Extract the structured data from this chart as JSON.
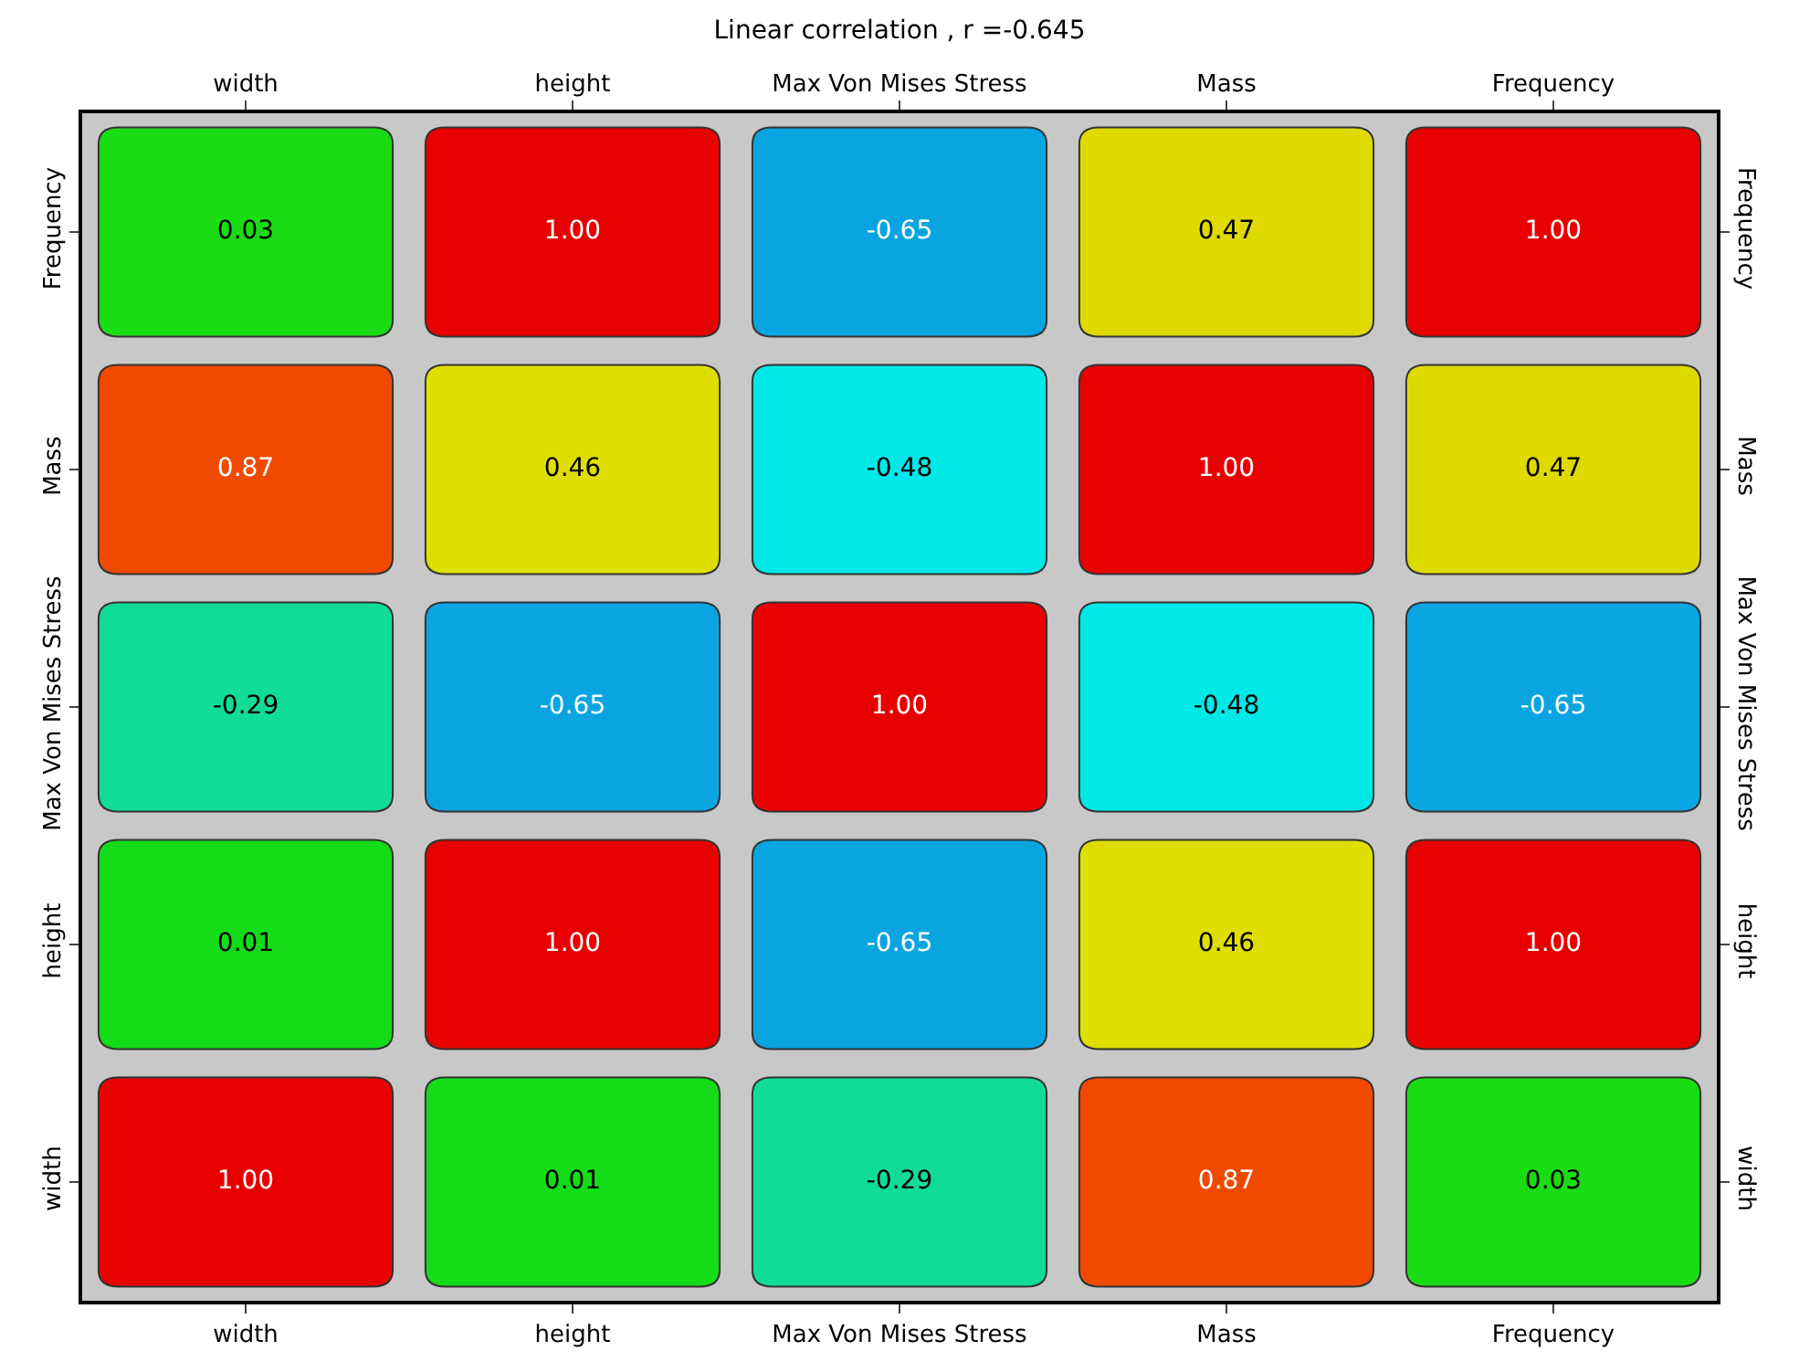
{
  "chart_data": {
    "type": "heatmap",
    "title": "Linear correlation , r =-0.645",
    "categories": [
      "width",
      "height",
      "Max Von Mises Stress",
      "Mass",
      "Frequency"
    ],
    "y_categories": [
      "Frequency",
      "Mass",
      "Max Von Mises Stress",
      "height",
      "width"
    ],
    "y2_categories": [
      "Frequency",
      "Mass",
      "Max Von Mises Stress",
      "height",
      "width"
    ],
    "cells": [
      [
        0.03,
        1.0,
        -0.65,
        0.47,
        1.0
      ],
      [
        0.87,
        0.46,
        -0.48,
        1.0,
        0.47
      ],
      [
        -0.29,
        -0.65,
        1.0,
        -0.48,
        -0.65
      ],
      [
        0.01,
        1.0,
        -0.65,
        0.46,
        1.0
      ],
      [
        1.0,
        0.01,
        -0.29,
        0.87,
        0.03
      ]
    ],
    "cell_labels": [
      [
        "0.03",
        "1.00",
        "-0.65",
        "0.47",
        "1.00"
      ],
      [
        "0.87",
        "0.46",
        "-0.48",
        "1.00",
        "0.47"
      ],
      [
        "-0.29",
        "-0.65",
        "1.00",
        "-0.48",
        "-0.65"
      ],
      [
        "0.01",
        "1.00",
        "-0.65",
        "0.46",
        "1.00"
      ],
      [
        "1.00",
        "0.01",
        "-0.29",
        "0.87",
        "0.03"
      ]
    ],
    "grid": false
  }
}
